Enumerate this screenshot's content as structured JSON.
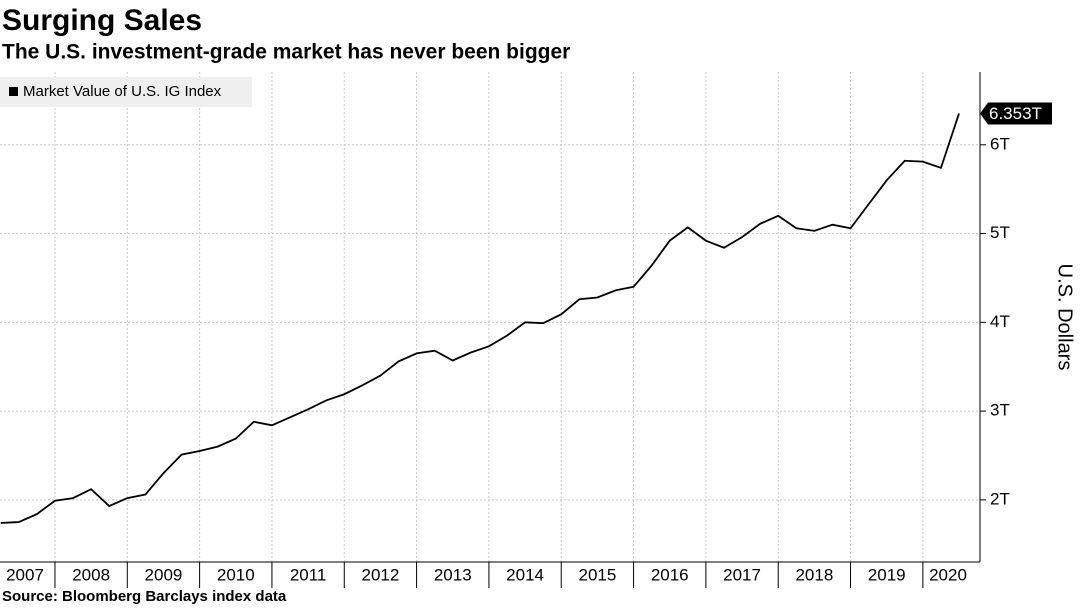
{
  "chart_data": {
    "type": "line",
    "title": "Surging Sales",
    "subtitle": "The U.S. investment-grade market has never been bigger",
    "y_axis_label": "U.S. Dollars",
    "source": "Source: Bloomberg Barclays index data",
    "grid": true,
    "legend": "top-left",
    "xlim": [
      2007.24,
      2020.79
    ],
    "xticks": [
      2007,
      2008,
      2009,
      2010,
      2011,
      2012,
      2013,
      2014,
      2015,
      2016,
      2017,
      2018,
      2019,
      2020
    ],
    "ylim": [
      1.3,
      6.82
    ],
    "yticks": [
      {
        "value": 2,
        "label": "2T"
      },
      {
        "value": 3,
        "label": "3T"
      },
      {
        "value": 4,
        "label": "4T"
      },
      {
        "value": 5,
        "label": "5T"
      },
      {
        "value": 6,
        "label": "6T"
      }
    ],
    "x": [
      2007.25,
      2007.5,
      2007.75,
      2008.0,
      2008.25,
      2008.5,
      2008.75,
      2009.0,
      2009.25,
      2009.5,
      2009.75,
      2010.0,
      2010.25,
      2010.5,
      2010.75,
      2011.0,
      2011.25,
      2011.5,
      2011.75,
      2012.0,
      2012.25,
      2012.5,
      2012.75,
      2013.0,
      2013.25,
      2013.5,
      2013.75,
      2014.0,
      2014.25,
      2014.5,
      2014.75,
      2015.0,
      2015.25,
      2015.5,
      2015.75,
      2016.0,
      2016.25,
      2016.5,
      2016.75,
      2017.0,
      2017.25,
      2017.5,
      2017.75,
      2018.0,
      2018.25,
      2018.5,
      2018.75,
      2019.0,
      2019.25,
      2019.5,
      2019.75,
      2020.0,
      2020.25,
      2020.5
    ],
    "series": [
      {
        "name": "Market Value of U.S. IG Index",
        "color": "#000000",
        "values": [
          1.74,
          1.75,
          1.84,
          1.99,
          2.02,
          2.12,
          1.93,
          2.02,
          2.06,
          2.3,
          2.51,
          2.55,
          2.6,
          2.69,
          2.88,
          2.84,
          2.93,
          3.02,
          3.12,
          3.19,
          3.29,
          3.4,
          3.56,
          3.65,
          3.68,
          3.57,
          3.66,
          3.73,
          3.85,
          4.0,
          3.99,
          4.09,
          4.26,
          4.28,
          4.36,
          4.4,
          4.64,
          4.92,
          5.07,
          4.92,
          4.84,
          4.96,
          5.11,
          5.2,
          5.06,
          5.03,
          5.1,
          5.06,
          5.33,
          5.6,
          5.82,
          5.81,
          5.74,
          6.353
        ],
        "value_labels": [
          null,
          null,
          null,
          null,
          null,
          null,
          null,
          null,
          null,
          null,
          null,
          null,
          null,
          null,
          null,
          null,
          null,
          null,
          null,
          null,
          null,
          null,
          null,
          null,
          null,
          null,
          null,
          null,
          null,
          null,
          null,
          null,
          null,
          null,
          null,
          null,
          null,
          null,
          null,
          null,
          null,
          null,
          null,
          null,
          null,
          null,
          null,
          null,
          null,
          null,
          null,
          null,
          null,
          "6.353T"
        ]
      }
    ]
  }
}
